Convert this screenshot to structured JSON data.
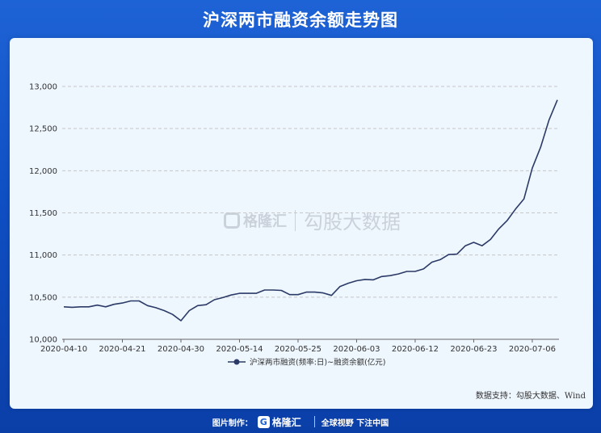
{
  "title": "沪深两市融资余额走势图",
  "watermark": {
    "logo_name": "格隆汇",
    "brand": "勾股大数据"
  },
  "source": "数据支持：勾股大数据、Wind",
  "footer": {
    "made_by": "图片制作：",
    "logo": "格隆汇",
    "slogan": "全球视野 下注中国"
  },
  "colors": {
    "line": "#2b3a67",
    "grid": "#c8c8c8",
    "background": "#1e63d6"
  },
  "chart_data": {
    "type": "line",
    "title": "沪深两市融资余额走势图",
    "ylim": [
      10000,
      13000
    ],
    "yticks": [
      10000,
      10500,
      11000,
      11500,
      12000,
      12500,
      13000
    ],
    "ytick_labels": [
      "10,000",
      "10,500",
      "11,000",
      "11,500",
      "12,000",
      "12,500",
      "13,000"
    ],
    "xtick_labels": [
      "2020-04-10",
      "2020-04-21",
      "2020-04-30",
      "2020-05-14",
      "2020-05-25",
      "2020-06-03",
      "2020-06-12",
      "2020-06-23",
      "2020-07-06"
    ],
    "xtick_index": [
      0,
      7,
      14,
      21,
      28,
      35,
      42,
      49,
      56
    ],
    "grid": true,
    "legend": "bottom-center",
    "series": [
      {
        "name": "沪深两市融资(频率:日)~融资余额(亿元)",
        "values": [
          10385,
          10380,
          10385,
          10385,
          10405,
          10385,
          10415,
          10430,
          10455,
          10455,
          10400,
          10375,
          10340,
          10295,
          10220,
          10340,
          10400,
          10410,
          10470,
          10495,
          10525,
          10545,
          10545,
          10545,
          10585,
          10585,
          10580,
          10530,
          10530,
          10560,
          10560,
          10550,
          10520,
          10625,
          10665,
          10695,
          10710,
          10705,
          10745,
          10755,
          10775,
          10805,
          10805,
          10835,
          10915,
          10945,
          11005,
          11010,
          11110,
          11150,
          11110,
          11185,
          11310,
          11410,
          11545,
          11665,
          12030,
          12280,
          12600,
          12840
        ]
      }
    ]
  }
}
